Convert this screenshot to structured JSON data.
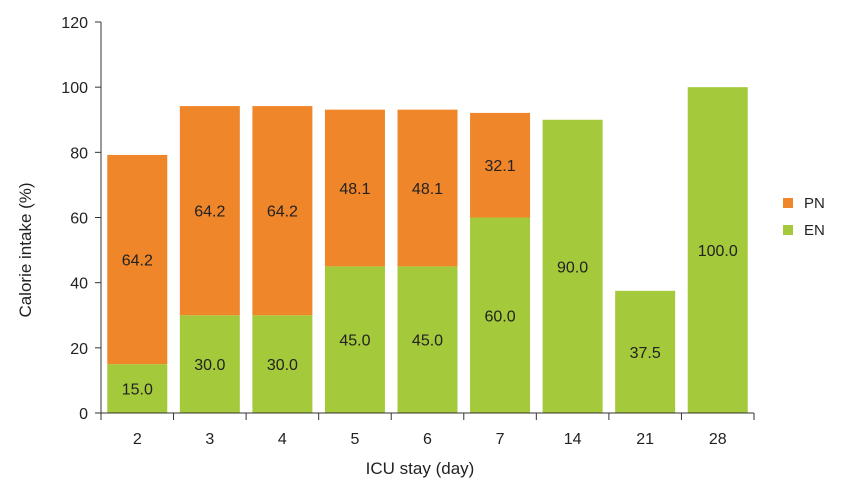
{
  "chart_data": {
    "type": "bar",
    "stacked": true,
    "title": "",
    "xlabel": "ICU stay (day)",
    "ylabel": "Calorie intake (%)",
    "ylim": [
      0,
      120
    ],
    "yticks": [
      0,
      20,
      40,
      60,
      80,
      100,
      120
    ],
    "categories": [
      "2",
      "3",
      "4",
      "5",
      "6",
      "7",
      "14",
      "21",
      "28"
    ],
    "grid": false,
    "legend_position": "right",
    "series": [
      {
        "name": "EN",
        "color": "#a4c93a",
        "values": [
          15.0,
          30.0,
          30.0,
          45.0,
          45.0,
          60.0,
          90.0,
          37.5,
          100.0
        ],
        "labels": [
          "15.0",
          "30.0",
          "30.0",
          "45.0",
          "45.0",
          "60.0",
          "90.0",
          "37.5",
          "100.0"
        ]
      },
      {
        "name": "PN",
        "color": "#f0862a",
        "values": [
          64.2,
          64.2,
          64.2,
          48.1,
          48.1,
          32.1,
          0,
          0,
          0
        ],
        "labels": [
          "64.2",
          "64.2",
          "64.2",
          "48.1",
          "48.1",
          "32.1",
          "",
          "",
          ""
        ]
      }
    ],
    "legend": [
      {
        "name": "PN",
        "color": "#f0862a"
      },
      {
        "name": "EN",
        "color": "#a4c93a"
      }
    ]
  }
}
